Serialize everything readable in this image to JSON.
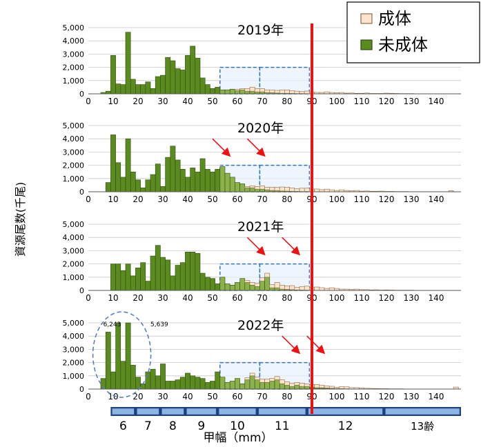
{
  "chart_data": {
    "type": "bar",
    "ylabel": "資源尾数(千尾)",
    "xlabel": "甲幅（mm）",
    "ylim": [
      0,
      5000
    ],
    "xlim": [
      0,
      150
    ],
    "x_ticks": [
      0,
      10,
      20,
      30,
      40,
      50,
      60,
      70,
      80,
      90,
      100,
      110,
      120,
      130,
      140
    ],
    "y_ticks": [
      "0",
      "1,000",
      "2,000",
      "3,000",
      "4,000",
      "5,000"
    ],
    "bin_start": 5,
    "bin_width": 2,
    "legend": {
      "position": "top-right",
      "items": [
        {
          "name": "成体",
          "color": "#fce4cc",
          "stroke": "#8b6b4a"
        },
        {
          "name": "未成体",
          "color": "#5b8a1f",
          "stroke": "#2e4a10"
        }
      ]
    },
    "red_line_x": 90,
    "highlight_boxes": [
      [
        53,
        69
      ],
      [
        69,
        89
      ]
    ],
    "panels": [
      {
        "title": "2019年",
        "immature": [
          100,
          200,
          2900,
          750,
          700,
          4650,
          1100,
          700,
          700,
          900,
          400,
          1300,
          1400,
          2750,
          2500,
          1900,
          1800,
          2900,
          3600,
          2700,
          1200,
          700,
          400,
          500,
          300,
          300,
          350,
          250,
          300,
          200,
          200,
          150,
          150,
          100,
          80,
          60,
          40,
          40,
          30,
          20,
          20,
          10,
          10,
          10,
          0,
          0,
          0,
          0,
          0,
          0,
          0,
          0,
          0,
          0,
          0,
          0,
          0,
          0,
          0,
          0,
          0,
          0,
          0,
          0,
          0,
          0,
          0,
          0,
          0,
          0,
          0,
          0
        ],
        "adult": [
          0,
          0,
          0,
          0,
          0,
          0,
          0,
          0,
          0,
          0,
          0,
          0,
          0,
          0,
          0,
          0,
          0,
          0,
          0,
          0,
          0,
          0,
          0,
          0,
          0,
          0,
          0,
          100,
          100,
          200,
          300,
          250,
          250,
          200,
          200,
          200,
          250,
          250,
          200,
          180,
          150,
          200,
          120,
          100,
          100,
          150,
          100,
          80,
          100,
          50,
          60,
          40,
          40,
          60,
          30,
          30,
          30,
          50,
          40,
          30,
          20,
          20,
          20,
          10,
          10,
          10,
          10,
          10,
          0,
          0,
          0,
          0
        ],
        "annotations": [],
        "arrows": []
      },
      {
        "title": "2020年",
        "immature": [
          0,
          700,
          4300,
          2200,
          1100,
          4000,
          1500,
          900,
          300,
          900,
          1300,
          2100,
          400,
          2600,
          3450,
          2400,
          1700,
          1100,
          1800,
          1500,
          2500,
          1700,
          1500,
          1700,
          1900,
          1400,
          1100,
          700,
          600,
          300,
          300,
          200,
          200,
          150,
          100,
          80,
          60,
          50,
          40,
          30,
          20,
          20,
          10,
          10,
          10,
          0,
          0,
          0,
          0,
          0,
          0,
          0,
          0,
          0,
          0,
          0,
          0,
          0,
          0,
          0,
          0,
          0,
          0,
          0,
          0,
          0,
          0,
          0,
          0,
          0,
          0,
          0
        ],
        "adult": [
          0,
          0,
          0,
          0,
          0,
          0,
          0,
          0,
          0,
          0,
          0,
          0,
          0,
          0,
          0,
          0,
          0,
          0,
          0,
          0,
          0,
          0,
          0,
          0,
          0,
          0,
          0,
          0,
          0,
          100,
          150,
          200,
          250,
          200,
          250,
          250,
          300,
          300,
          250,
          200,
          250,
          250,
          200,
          200,
          150,
          200,
          150,
          100,
          150,
          100,
          80,
          100,
          50,
          60,
          40,
          40,
          50,
          30,
          30,
          20,
          20,
          20,
          10,
          10,
          10,
          10,
          10,
          10,
          0,
          0,
          80,
          0
        ],
        "annotations": [],
        "arrows": [
          [
            50,
            4000,
            57,
            2700
          ],
          [
            64,
            4000,
            71,
            2700
          ]
        ]
      },
      {
        "title": "2021年",
        "immature": [
          0,
          0,
          2000,
          2000,
          1500,
          2000,
          1100,
          1700,
          2100,
          700,
          2600,
          3400,
          2500,
          2300,
          1100,
          1900,
          2100,
          2900,
          2900,
          2800,
          1300,
          1000,
          900,
          500,
          1000,
          500,
          400,
          600,
          900,
          600,
          400,
          300,
          700,
          1000,
          200,
          200,
          100,
          80,
          60,
          40,
          30,
          20,
          20,
          10,
          10,
          0,
          0,
          0,
          0,
          0,
          0,
          0,
          0,
          0,
          0,
          0,
          0,
          0,
          0,
          0,
          0,
          0,
          0,
          0,
          0,
          0,
          0,
          0,
          0,
          0,
          0,
          0
        ],
        "adult": [
          0,
          0,
          0,
          0,
          0,
          0,
          0,
          0,
          0,
          0,
          0,
          0,
          0,
          0,
          0,
          0,
          0,
          0,
          0,
          0,
          0,
          0,
          0,
          0,
          0,
          0,
          0,
          0,
          0,
          150,
          200,
          250,
          250,
          300,
          250,
          400,
          300,
          250,
          300,
          200,
          250,
          300,
          200,
          250,
          200,
          150,
          200,
          150,
          100,
          100,
          80,
          100,
          60,
          60,
          40,
          50,
          30,
          40,
          30,
          20,
          20,
          20,
          20,
          10,
          10,
          10,
          10,
          10,
          0,
          0,
          0,
          0
        ],
        "annotations": [],
        "arrows": [
          [
            64,
            4000,
            71,
            2700
          ],
          [
            78,
            4000,
            85,
            2700
          ]
        ]
      },
      {
        "title": "2022年",
        "immature": [
          800,
          4300,
          1300,
          5000,
          2100,
          5000,
          1800,
          900,
          400,
          1300,
          1500,
          1000,
          1900,
          600,
          600,
          700,
          900,
          1200,
          1000,
          900,
          800,
          500,
          600,
          1300,
          900,
          500,
          600,
          800,
          400,
          700,
          1000,
          700,
          500,
          500,
          600,
          700,
          400,
          300,
          200,
          300,
          200,
          200,
          150,
          100,
          100,
          80,
          60,
          40,
          30,
          20,
          10,
          10,
          0,
          0,
          0,
          0,
          0,
          0,
          0,
          0,
          0,
          0,
          0,
          0,
          0,
          0,
          0,
          0,
          0,
          0,
          0,
          0
        ],
        "adult": [
          0,
          0,
          0,
          0,
          0,
          0,
          0,
          0,
          0,
          0,
          0,
          0,
          0,
          0,
          0,
          0,
          0,
          0,
          0,
          0,
          0,
          0,
          0,
          0,
          0,
          0,
          0,
          0,
          0,
          150,
          200,
          200,
          250,
          250,
          200,
          250,
          300,
          250,
          250,
          200,
          250,
          200,
          200,
          250,
          200,
          150,
          150,
          100,
          150,
          150,
          100,
          100,
          80,
          60,
          50,
          40,
          30,
          30,
          20,
          20,
          20,
          10,
          10,
          10,
          10,
          10,
          10,
          0,
          0,
          0,
          0,
          150
        ],
        "annotations": [
          "6,243",
          "5,639"
        ],
        "arrows": [
          [
            78,
            4000,
            85,
            2700
          ],
          [
            88,
            4000,
            95,
            2700
          ]
        ]
      }
    ],
    "age_classes": [
      {
        "label": "6",
        "from": 5,
        "to": 19
      },
      {
        "label": "7",
        "from": 19,
        "to": 29
      },
      {
        "label": "8",
        "from": 29,
        "to": 39
      },
      {
        "label": "9",
        "from": 39,
        "to": 52
      },
      {
        "label": "10",
        "from": 52,
        "to": 68
      },
      {
        "label": "11",
        "from": 68,
        "to": 88
      },
      {
        "label": "12",
        "from": 88,
        "to": 119
      },
      {
        "label": "13齢",
        "from": 119,
        "to": 150
      }
    ]
  }
}
